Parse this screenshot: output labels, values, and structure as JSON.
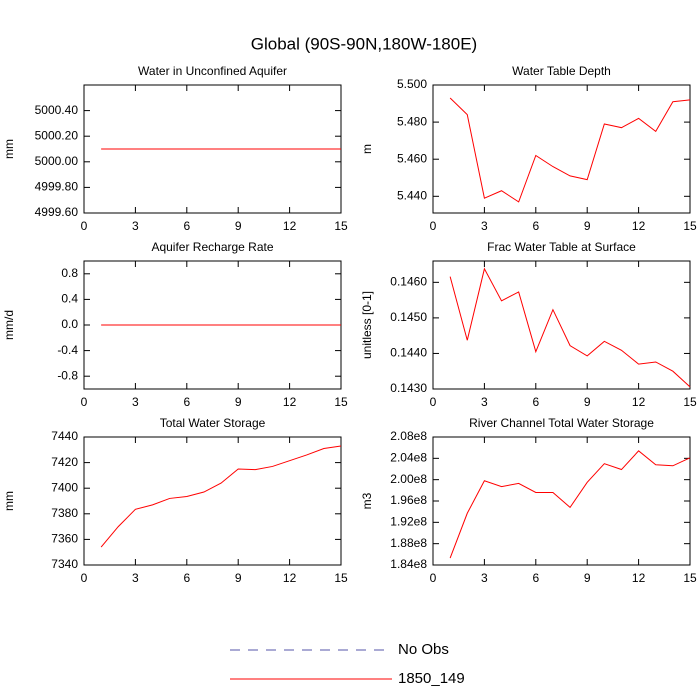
{
  "title": "Global (90S-90N,180W-180E)",
  "legend": [
    {
      "name": "No Obs",
      "color": "#5555aa",
      "dashed": true
    },
    {
      "name": "1850_149",
      "color": "#ff0000",
      "dashed": false
    }
  ],
  "chart_data": [
    {
      "type": "line",
      "title": "Water in Unconfined Aquifer",
      "y_label": "mm",
      "color": "#ff0000",
      "x": [
        1,
        2,
        3,
        4,
        5,
        6,
        7,
        8,
        9,
        10,
        11,
        12,
        13,
        14,
        15
      ],
      "values": [
        5000.1,
        5000.1,
        5000.1,
        5000.1,
        5000.1,
        5000.1,
        5000.1,
        5000.1,
        5000.1,
        5000.1,
        5000.1,
        5000.1,
        5000.1,
        5000.1,
        5000.1
      ],
      "xlim": [
        0,
        15
      ],
      "xticks": [
        0,
        3,
        6,
        9,
        12,
        15
      ],
      "ylim": [
        4999.6,
        5000.6
      ],
      "yticks": [
        {
          "value": 4999.6,
          "label": "4999.60"
        },
        {
          "value": 4999.8,
          "label": "4999.80"
        },
        {
          "value": 5000.0,
          "label": "5000.00"
        },
        {
          "value": 5000.2,
          "label": "5000.20"
        },
        {
          "value": 5000.4,
          "label": "5000.40"
        }
      ]
    },
    {
      "type": "line",
      "title": "Water Table Depth",
      "y_label": "m",
      "color": "#ff0000",
      "x": [
        1,
        2,
        3,
        4,
        5,
        6,
        7,
        8,
        9,
        10,
        11,
        12,
        13,
        14,
        15
      ],
      "values": [
        5.493,
        5.484,
        5.439,
        5.443,
        5.437,
        5.462,
        5.456,
        5.451,
        5.449,
        5.479,
        5.477,
        5.482,
        5.475,
        5.491,
        5.492
      ],
      "xlim": [
        0,
        15
      ],
      "xticks": [
        0,
        3,
        6,
        9,
        12,
        15
      ],
      "ylim": [
        5.431,
        5.5
      ],
      "yticks": [
        {
          "value": 5.44,
          "label": "5.440"
        },
        {
          "value": 5.46,
          "label": "5.460"
        },
        {
          "value": 5.48,
          "label": "5.480"
        },
        {
          "value": 5.5,
          "label": "5.500"
        }
      ]
    },
    {
      "type": "line",
      "title": "Aquifer Recharge Rate",
      "y_label": "mm/d",
      "color": "#ff0000",
      "x": [
        1,
        2,
        3,
        4,
        5,
        6,
        7,
        8,
        9,
        10,
        11,
        12,
        13,
        14,
        15
      ],
      "values": [
        0,
        0,
        0,
        0,
        0,
        0,
        0,
        0,
        0,
        0,
        0,
        0,
        0,
        0,
        0
      ],
      "xlim": [
        0,
        15
      ],
      "xticks": [
        0,
        3,
        6,
        9,
        12,
        15
      ],
      "ylim": [
        -1,
        1
      ],
      "yticks": [
        -0.8,
        -0.4,
        {
          "value": 0,
          "label": "0.0"
        },
        0.4,
        0.8
      ]
    },
    {
      "type": "line",
      "title": "Frac Water Table at Surface",
      "y_label": "unitless [0-1]",
      "color": "#ff0000",
      "x": [
        1,
        2,
        3,
        4,
        5,
        6,
        7,
        8,
        9,
        10,
        11,
        12,
        13,
        14,
        15
      ],
      "values": [
        0.14616,
        0.14437,
        0.14638,
        0.14548,
        0.14573,
        0.14405,
        0.14523,
        0.14422,
        0.14393,
        0.14434,
        0.14409,
        0.1437,
        0.14376,
        0.1435,
        0.14306
      ],
      "xlim": [
        0,
        15
      ],
      "xticks": [
        0,
        3,
        6,
        9,
        12,
        15
      ],
      "ylim": [
        0.143,
        0.1466
      ],
      "yticks": [
        {
          "value": 0.143,
          "label": "0.1430"
        },
        {
          "value": 0.144,
          "label": "0.1440"
        },
        {
          "value": 0.145,
          "label": "0.1450"
        },
        {
          "value": 0.146,
          "label": "0.1460"
        }
      ]
    },
    {
      "type": "line",
      "title": "Total Water Storage",
      "y_label": "mm",
      "color": "#ff0000",
      "x": [
        1,
        2,
        3,
        4,
        5,
        6,
        7,
        8,
        9,
        10,
        11,
        12,
        13,
        14,
        15
      ],
      "values": [
        7354,
        7370,
        7383.5,
        7387,
        7392,
        7393.5,
        7397,
        7404,
        7415,
        7414.5,
        7417,
        7421.5,
        7426,
        7431,
        7433
      ],
      "xlim": [
        0,
        15
      ],
      "xticks": [
        0,
        3,
        6,
        9,
        12,
        15
      ],
      "ylim": [
        7340,
        7440
      ],
      "yticks": [
        7340,
        7360,
        7380,
        7400,
        7420,
        7440
      ]
    },
    {
      "type": "line",
      "title": "River Channel Total Water Storage",
      "y_label": "m3",
      "color": "#ff0000",
      "x": [
        1,
        2,
        3,
        4,
        5,
        6,
        7,
        8,
        9,
        10,
        11,
        12,
        13,
        14,
        15
      ],
      "values": [
        185300000,
        193700000,
        199800000,
        198700000,
        199300000,
        197600000,
        197600000,
        194800000,
        199500000,
        203000000,
        201900000,
        205400000,
        202800000,
        202600000,
        204100000
      ],
      "xlim": [
        0,
        15
      ],
      "xticks": [
        0,
        3,
        6,
        9,
        12,
        15
      ],
      "ylim": [
        184000000,
        208000000
      ],
      "yticks": [
        {
          "value": 184000000,
          "label": "1.84e8"
        },
        {
          "value": 188000000,
          "label": "1.88e8"
        },
        {
          "value": 192000000,
          "label": "1.92e8"
        },
        {
          "value": 196000000,
          "label": "1.96e8"
        },
        {
          "value": 200000000,
          "label": "2.00e8"
        },
        {
          "value": 204000000,
          "label": "2.04e8"
        },
        {
          "value": 208000000,
          "label": "2.08e8"
        }
      ]
    }
  ]
}
